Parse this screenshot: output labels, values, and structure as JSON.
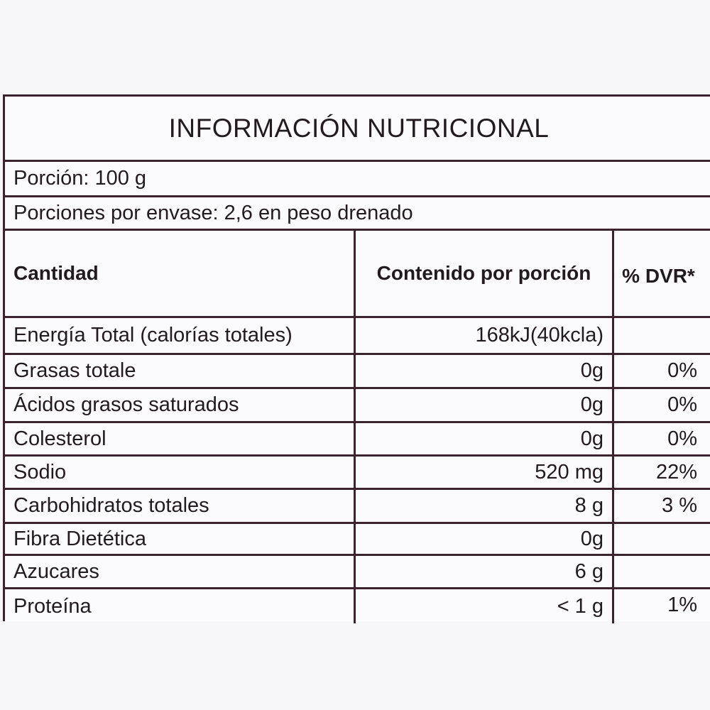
{
  "title": "INFORMACIÓN NUTRICIONAL",
  "portion": "Porción: 100 g",
  "portions_per_container": "Porciones por envase:  2,6 en peso drenado",
  "headers": {
    "quantity": "Cantidad",
    "content": "Contenido por porción",
    "dvr": "% DVR*"
  },
  "rows": [
    {
      "name": "Energía Total (calorías totales)",
      "amount": "168kJ(40kcla)",
      "dvr": ""
    },
    {
      "name": "Grasas totale",
      "amount": "0g",
      "dvr": "0%"
    },
    {
      "name": "Ácidos grasos saturados",
      "amount": "0g",
      "dvr": "0%"
    },
    {
      "name": "Colesterol",
      "amount": "0g",
      "dvr": "0%"
    },
    {
      "name": "Sodio",
      "amount": "520 mg",
      "dvr": "22%"
    },
    {
      "name": "Carbohidratos totales",
      "amount": "8 g",
      "dvr": "3 %"
    },
    {
      "name": "Fibra Dietética",
      "amount": "0g",
      "dvr": ""
    },
    {
      "name": "Azucares",
      "amount": "6 g",
      "dvr": ""
    },
    {
      "name": "Proteína",
      "amount": "< 1 g",
      "dvr": "1%"
    }
  ]
}
